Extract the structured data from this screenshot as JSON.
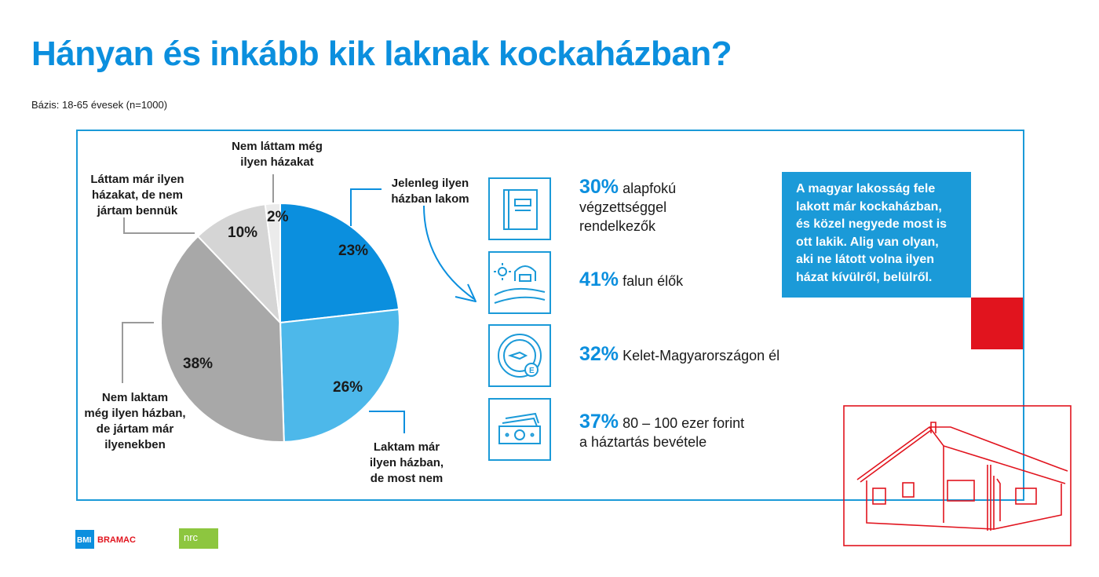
{
  "title": "Hányan és inkább kik laknak kockaházban?",
  "basis": "Bázis: 18-65 évesek (n=1000)",
  "chart_data": {
    "type": "pie",
    "unit": "%",
    "slices": [
      {
        "label": "Jelenleg ilyen házban lakom",
        "value": 23,
        "color": "#0b8fde"
      },
      {
        "label": "Laktam már ilyen házban, de most nem",
        "value": 26,
        "color": "#4db8ea"
      },
      {
        "label": "Nem laktam még ilyen házban, de jártam már ilyenekben",
        "value": 38,
        "color": "#a8a8a8"
      },
      {
        "label": "Láttam már ilyen házakat, de nem jártam bennük",
        "value": 10,
        "color": "#d5d5d5"
      },
      {
        "label": "Nem láttam még ilyen házakat",
        "value": 2,
        "color": "#ebebeb"
      }
    ]
  },
  "pie_labels": {
    "s0": [
      "Jelenleg ilyen",
      "házban lakom"
    ],
    "s1": [
      "Laktam már",
      "ilyen házban,",
      "de most nem"
    ],
    "s2": [
      "Nem laktam",
      "még ilyen házban,",
      "de jártam már",
      "ilyenekben"
    ],
    "s3": [
      "Láttam már ilyen",
      "házakat, de nem",
      "jártam bennük"
    ],
    "s4": [
      "Nem láttam még",
      "ilyen házakat"
    ]
  },
  "pct_labels": [
    "23%",
    "26%",
    "38%",
    "10%",
    "2%"
  ],
  "stats": [
    {
      "icon": "book-icon",
      "pct": "30%",
      "line1": "alapfokú",
      "rest": [
        "végzettséggel",
        "rendelkezők"
      ]
    },
    {
      "icon": "farm-house-icon",
      "pct": "41%",
      "line1": "falun élők",
      "rest": []
    },
    {
      "icon": "compass-east-icon",
      "pct": "32%",
      "line1": "Kelet-Magyarországon él",
      "rest": []
    },
    {
      "icon": "money-icon",
      "pct": "37%",
      "line1": "80 – 100 ezer forint",
      "rest": [
        "a háztartás bevétele"
      ]
    }
  ],
  "callout": "A magyar lakosság fele lakott már kockaházban, és közel negyede most is ott lakik. Alig van olyan, aki ne látott volna ilyen házat kívülről, belülről.",
  "colors": {
    "brand_blue": "#0b8fde",
    "frame_blue": "#1b9ad8",
    "red": "#e1141e",
    "nrc_green": "#8dc63f"
  },
  "logos": {
    "bmi": "BMI",
    "bramac": "BRAMAC",
    "nrc": "nrc"
  }
}
